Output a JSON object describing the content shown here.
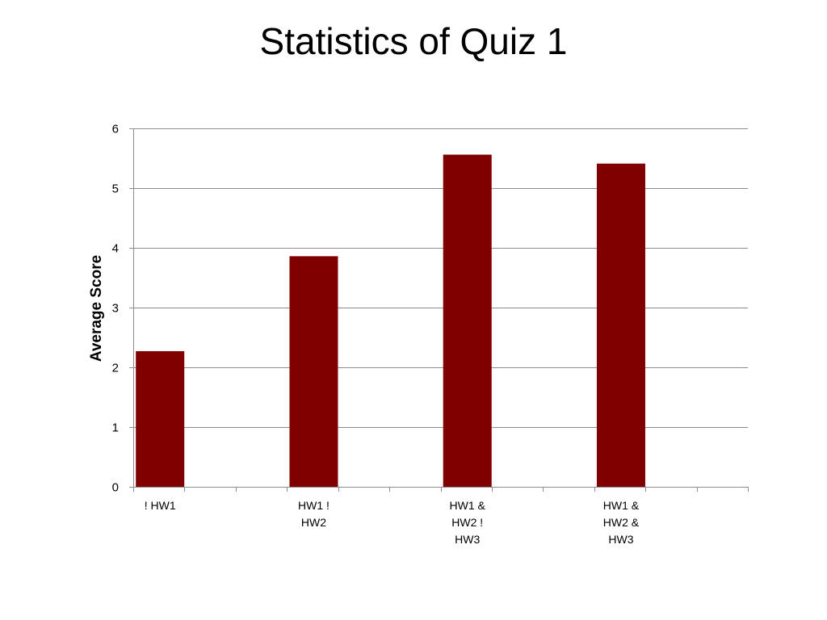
{
  "slide": {
    "title": "Statistics of Quiz 1"
  },
  "chart_data": {
    "type": "bar",
    "title": "",
    "xlabel": "",
    "ylabel": "Average Score",
    "ylim": [
      0,
      6
    ],
    "yticks": [
      0,
      1,
      2,
      3,
      4,
      5,
      6
    ],
    "grid": true,
    "legend": "none",
    "categories": [
      [
        "! HW1"
      ],
      [
        "HW1 !",
        "HW2"
      ],
      [
        "HW1 &",
        "HW2 !",
        "HW3"
      ],
      [
        "HW1 &",
        "HW2 &",
        "HW3"
      ]
    ],
    "values": [
      2.27,
      3.86,
      5.56,
      5.41
    ],
    "colors": {
      "bar": "#800000",
      "grid": "#8c8c8c",
      "axis": "#8c8c8c"
    }
  }
}
